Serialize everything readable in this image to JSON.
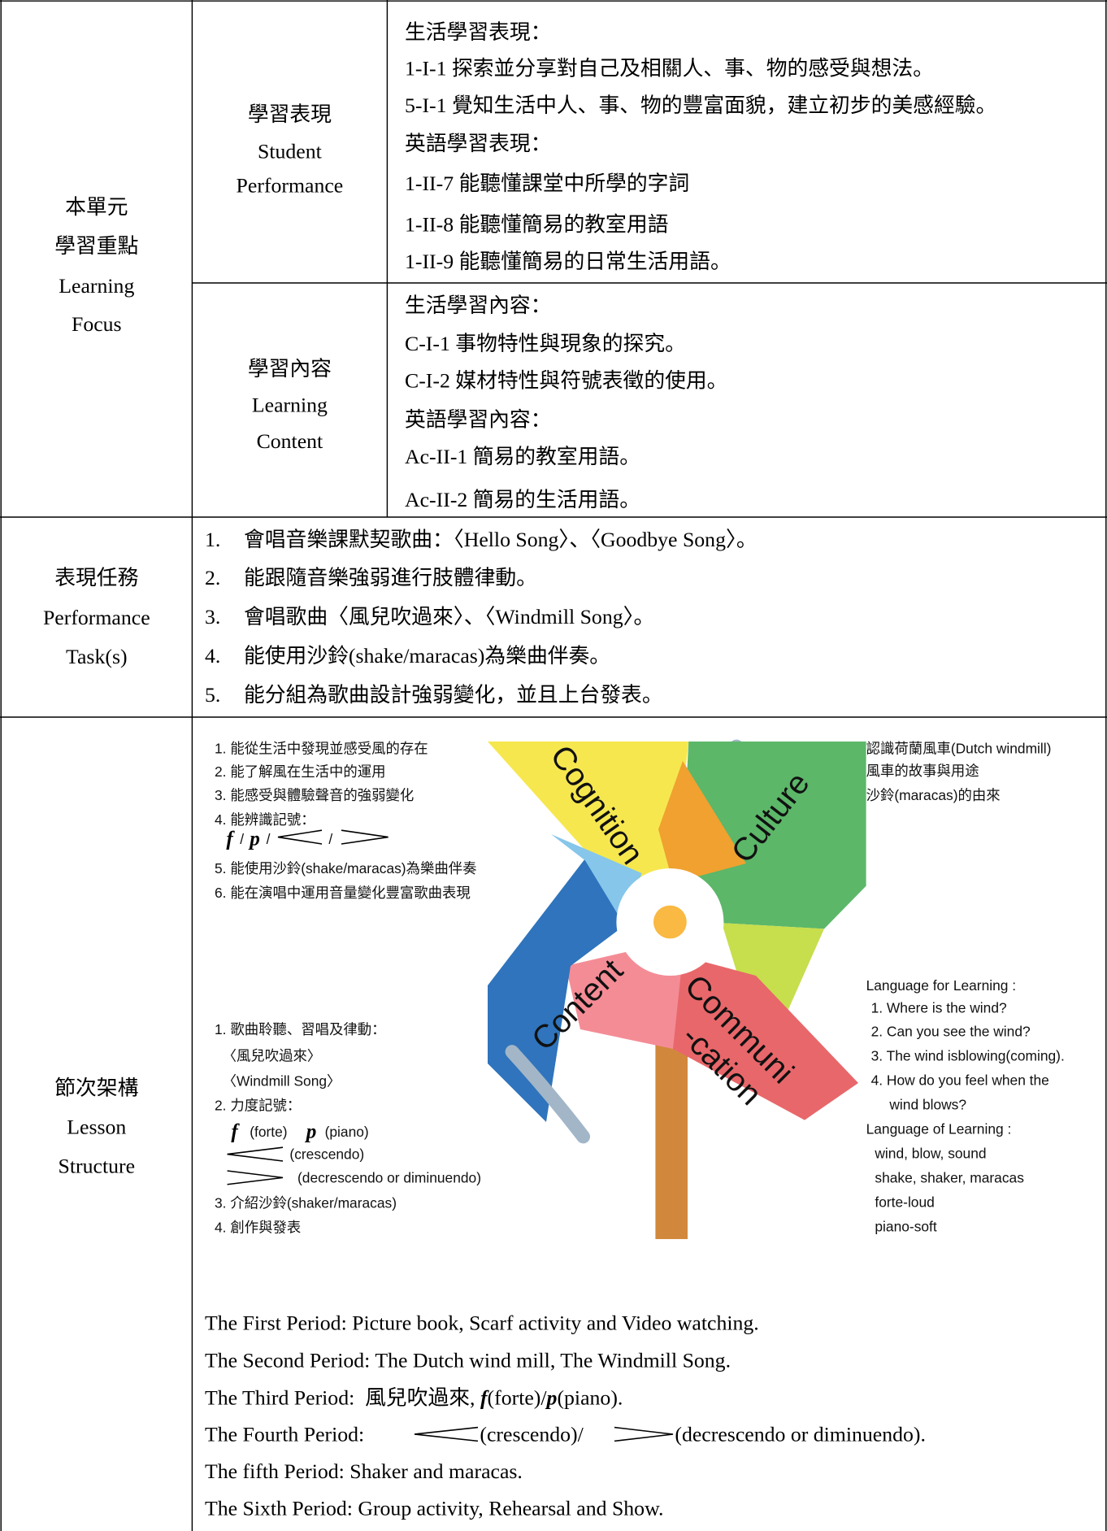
{
  "learning_focus": {
    "label": [
      "本單元",
      "學習重點",
      "Learning",
      "Focus"
    ],
    "performance": {
      "label": [
        "學習表現",
        "Student",
        "Performance"
      ],
      "lines": [
        "生活學習表現：",
        "1-I-1 探索並分享對自己及相關人、事、物的感受與想法。",
        "5-I-1 覺知生活中人、事、物的豐富面貌，建立初步的美感經驗。",
        "英語學習表現：",
        "1-II-7 能聽懂課堂中所學的字詞",
        "1-II-8 能聽懂簡易的教室用語",
        "1-II-9 能聽懂簡易的日常生活用語。"
      ]
    },
    "content": {
      "label": [
        "學習內容",
        "Learning",
        "Content"
      ],
      "lines": [
        "生活學習內容：",
        "C-I-1 事物特性與現象的探究。",
        "C-I-2 媒材特性與符號表徵的使用。",
        "英語學習內容：",
        "Ac-II-1 簡易的教室用語。",
        "Ac-II-2 簡易的生活用語。"
      ]
    }
  },
  "tasks": {
    "label": [
      "表現任務",
      "Performance",
      "Task(s)"
    ],
    "items": [
      {
        "number": "1.",
        "text": "會唱音樂課默契歌曲：〈Hello Song〉、〈Goodbye Song〉。"
      },
      {
        "number": "2.",
        "text": "能跟隨音樂強弱進行肢體律動。"
      },
      {
        "number": "3.",
        "text": "會唱歌曲〈風兒吹過來〉、〈Windmill Song〉。"
      },
      {
        "number": "4.",
        "text": "能使用沙鈴(shake/maracas)為樂曲伴奏。"
      },
      {
        "number": "5.",
        "text": "能分組為歌曲設計強弱變化，並且上台發表。"
      }
    ]
  },
  "structure": {
    "label": [
      "節次架構",
      "Lesson",
      "Structure"
    ],
    "diagram": {
      "blades": {
        "cognition": "Cognition",
        "culture": "Culture",
        "content": "Content",
        "communication": [
          "Communi",
          "-cation"
        ]
      },
      "cognition_list": {
        "lines_before": [
          "1. 能從生活中發現並感受風的存在",
          "2. 能了解風在生活中的運用",
          "3. 能感受與體驗聲音的強弱變化",
          "4. 能辨識記號："
        ],
        "symbols": {
          "forte": "f",
          "piano": "p",
          "separator": "/"
        },
        "lines_after": [
          "5. 能使用沙鈴(shake/maracas)為樂曲伴奏",
          "6. 能在演唱中運用音量變化豐富歌曲表現"
        ]
      },
      "content_list": {
        "lines_before": [
          "1. 歌曲聆聽、習唱及律動：",
          "〈風兒吹過來〉",
          "〈Windmill Song〉",
          "2. 力度記號："
        ],
        "forte": "(forte)",
        "piano": "(piano)",
        "crescendo": "(crescendo)",
        "decrescendo": "(decrescendo or diminuendo)",
        "lines_after": [
          "3. 介紹沙鈴(shaker/maracas)",
          "4. 創作與發表"
        ]
      },
      "culture_notes": [
        "認識荷蘭風車(Dutch windmill)",
        "風車的故事與用途",
        "沙鈴(maracas)的由來"
      ],
      "language": {
        "for_title": "Language for Learning :",
        "for_items": [
          "1. Where is the wind?",
          "2. Can you see the wind?",
          "3. The wind isblowing(coming).",
          "4. How do you feel when the"
        ],
        "for_continued": "wind blows?",
        "of_title": "Language of Learning :",
        "of_items": [
          "wind, blow, sound",
          "shake, shaker, maracas",
          "forte-loud",
          "piano-soft"
        ]
      }
    },
    "periods": [
      {
        "text": "The First Period: Picture book, Scarf activity and Video watching."
      },
      {
        "text": "The Second Period: The Dutch wind mill, The Windmill Song."
      },
      {
        "parts": [
          "The Third Period:  風兒吹過來, ",
          "f",
          "(forte)/",
          "p",
          "(piano)."
        ]
      },
      {
        "parts": [
          "The Fourth Period: ",
          "(crescendo)/",
          "(decrescendo or diminuendo)."
        ]
      },
      {
        "text": "The fifth Period: Shaker and maracas."
      },
      {
        "text": "The Sixth Period: Group activity, Rehearsal and Show."
      }
    ]
  }
}
